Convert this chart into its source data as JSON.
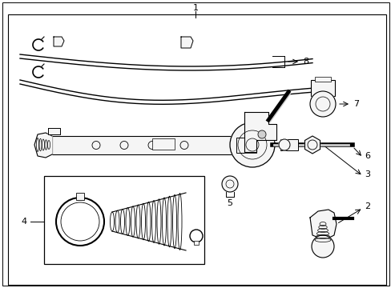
{
  "background_color": "#ffffff",
  "border_color": "#000000",
  "fig_width": 4.89,
  "fig_height": 3.6,
  "dpi": 100,
  "line_color": "#000000",
  "text_color": "#000000",
  "gray_fill": "#f5f5f5",
  "dark_gray": "#d0d0d0"
}
